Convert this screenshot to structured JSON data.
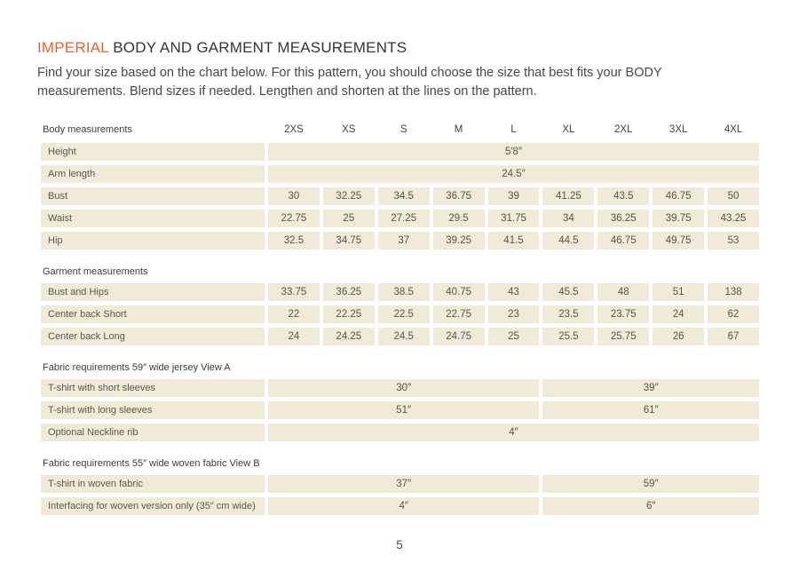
{
  "page": {
    "title_accent": "IMPERIAL",
    "title_rest": " BODY AND GARMENT MEASUREMENTS",
    "subtitle": "Find your size based on the chart below. For this pattern, you should choose the size that best fits your BODY measurements. Blend sizes if needed. Lengthen and shorten at the lines on the pattern.",
    "page_number": "5"
  },
  "colors": {
    "accent": "#E7612B",
    "cell_background": "#F2EAD9",
    "text": "#3D3D3D"
  },
  "chart_data": {
    "type": "table",
    "header_label": "Body measurements",
    "sizes": [
      "2XS",
      "XS",
      "S",
      "M",
      "L",
      "XL",
      "2XL",
      "3XL",
      "4XL"
    ],
    "rows": [
      {
        "type": "data",
        "label": "Height",
        "cells": [
          {
            "text": "5′8″",
            "span": 9
          }
        ]
      },
      {
        "type": "data",
        "label": "Arm length",
        "cells": [
          {
            "text": "24.5″",
            "span": 9
          }
        ]
      },
      {
        "type": "data",
        "label": "Bust",
        "cells": [
          {
            "text": "30",
            "span": 1
          },
          {
            "text": "32.25",
            "span": 1
          },
          {
            "text": "34.5",
            "span": 1
          },
          {
            "text": "36.75",
            "span": 1
          },
          {
            "text": "39",
            "span": 1
          },
          {
            "text": "41.25",
            "span": 1
          },
          {
            "text": "43.5",
            "span": 1
          },
          {
            "text": "46.75",
            "span": 1
          },
          {
            "text": "50",
            "span": 1
          }
        ]
      },
      {
        "type": "data",
        "label": "Waist",
        "cells": [
          {
            "text": "22.75",
            "span": 1
          },
          {
            "text": "25",
            "span": 1
          },
          {
            "text": "27.25",
            "span": 1
          },
          {
            "text": "29.5",
            "span": 1
          },
          {
            "text": "31.75",
            "span": 1
          },
          {
            "text": "34",
            "span": 1
          },
          {
            "text": "36.25",
            "span": 1
          },
          {
            "text": "39.75",
            "span": 1
          },
          {
            "text": "43.25",
            "span": 1
          }
        ]
      },
      {
        "type": "data",
        "label": "Hip",
        "cells": [
          {
            "text": "32.5",
            "span": 1
          },
          {
            "text": "34.75",
            "span": 1
          },
          {
            "text": "37",
            "span": 1
          },
          {
            "text": "39.25",
            "span": 1
          },
          {
            "text": "41.5",
            "span": 1
          },
          {
            "text": "44.5",
            "span": 1
          },
          {
            "text": "46.75",
            "span": 1
          },
          {
            "text": "49.75",
            "span": 1
          },
          {
            "text": "53",
            "span": 1
          }
        ]
      },
      {
        "type": "section",
        "label": "Garment measurements"
      },
      {
        "type": "data",
        "label": "Bust and Hips",
        "cells": [
          {
            "text": "33.75",
            "span": 1
          },
          {
            "text": "36.25",
            "span": 1
          },
          {
            "text": "38.5",
            "span": 1
          },
          {
            "text": "40.75",
            "span": 1
          },
          {
            "text": "43",
            "span": 1
          },
          {
            "text": "45.5",
            "span": 1
          },
          {
            "text": "48",
            "span": 1
          },
          {
            "text": "51",
            "span": 1
          },
          {
            "text": "138",
            "span": 1
          }
        ]
      },
      {
        "type": "data",
        "label": "Center back Short",
        "cells": [
          {
            "text": "22",
            "span": 1
          },
          {
            "text": "22.25",
            "span": 1
          },
          {
            "text": "22.5",
            "span": 1
          },
          {
            "text": "22.75",
            "span": 1
          },
          {
            "text": "23",
            "span": 1
          },
          {
            "text": "23.5",
            "span": 1
          },
          {
            "text": "23.75",
            "span": 1
          },
          {
            "text": "24",
            "span": 1
          },
          {
            "text": "62",
            "span": 1
          }
        ]
      },
      {
        "type": "data",
        "label": "Center back Long",
        "cells": [
          {
            "text": "24",
            "span": 1
          },
          {
            "text": "24.25",
            "span": 1
          },
          {
            "text": "24.5",
            "span": 1
          },
          {
            "text": "24.75",
            "span": 1
          },
          {
            "text": "25",
            "span": 1
          },
          {
            "text": "25.5",
            "span": 1
          },
          {
            "text": "25.75",
            "span": 1
          },
          {
            "text": "26",
            "span": 1
          },
          {
            "text": "67",
            "span": 1
          }
        ]
      },
      {
        "type": "section",
        "label": "Fabric requirements 59″ wide jersey View A"
      },
      {
        "type": "data",
        "label": "T-shirt with short sleeves",
        "cells": [
          {
            "text": "30″",
            "span": 5
          },
          {
            "text": "39″",
            "span": 4
          }
        ]
      },
      {
        "type": "data",
        "label": "T-shirt with long sleeves",
        "cells": [
          {
            "text": "51″",
            "span": 5
          },
          {
            "text": "61″",
            "span": 4
          }
        ]
      },
      {
        "type": "data",
        "label": "Optional Neckline rib",
        "cells": [
          {
            "text": "4″",
            "span": 9
          }
        ]
      },
      {
        "type": "section",
        "label": "Fabric requirements 55″ wide woven fabric View B"
      },
      {
        "type": "data",
        "label": "T-shirt in woven fabric",
        "cells": [
          {
            "text": "37″",
            "span": 5
          },
          {
            "text": "59″",
            "span": 4
          }
        ]
      },
      {
        "type": "data",
        "label": "Interfacing for woven version only (35″ cm wide)",
        "cells": [
          {
            "text": "4″",
            "span": 5
          },
          {
            "text": "6″",
            "span": 4
          }
        ]
      }
    ]
  }
}
